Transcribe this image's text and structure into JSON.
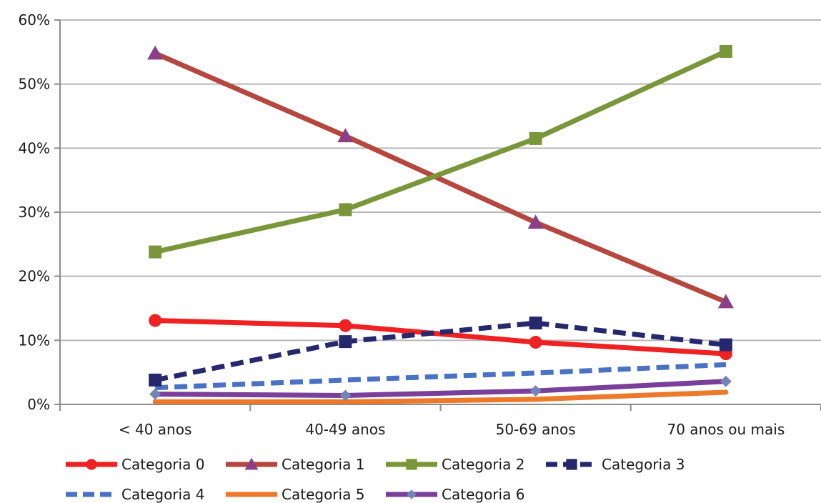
{
  "chart_data": {
    "type": "line",
    "title": "",
    "xlabel": "",
    "ylabel": "",
    "categories": [
      "< 40 anos",
      "40-49 anos",
      "50-69 anos",
      "70 anos ou mais"
    ],
    "ylim": [
      0,
      60
    ],
    "yticks": [
      0,
      10,
      20,
      30,
      40,
      50,
      60
    ],
    "ytick_labels": [
      "0%",
      "10%",
      "20%",
      "30%",
      "40%",
      "50%",
      "60%"
    ],
    "grid": true,
    "legend_position": "bottom",
    "series": [
      {
        "name": "Categoria 0",
        "values": [
          13.1,
          12.3,
          9.7,
          7.9
        ],
        "color": "#ee2222",
        "dash": "solid",
        "marker": "circle"
      },
      {
        "name": "Categoria 1",
        "values": [
          54.8,
          41.9,
          28.4,
          16.0
        ],
        "color": "#b5473f",
        "dash": "solid",
        "marker": "triangle"
      },
      {
        "name": "Categoria 2",
        "values": [
          23.8,
          30.4,
          41.5,
          55.1
        ],
        "color": "#79973a",
        "dash": "solid",
        "marker": "square"
      },
      {
        "name": "Categoria 3",
        "values": [
          3.8,
          9.8,
          12.7,
          9.3
        ],
        "color": "#26286e",
        "dash": "dash",
        "marker": "square"
      },
      {
        "name": "Categoria 4",
        "values": [
          2.6,
          3.8,
          4.9,
          6.2
        ],
        "color": "#4a72c4",
        "dash": "dash",
        "marker": "none"
      },
      {
        "name": "Categoria 5",
        "values": [
          0.4,
          0.4,
          0.8,
          1.9
        ],
        "color": "#ec7a2a",
        "dash": "solid",
        "marker": "none"
      },
      {
        "name": "Categoria 6",
        "values": [
          1.6,
          1.4,
          2.1,
          3.6
        ],
        "color": "#7a3f9b",
        "dash": "solid",
        "marker": "diamond"
      }
    ]
  }
}
